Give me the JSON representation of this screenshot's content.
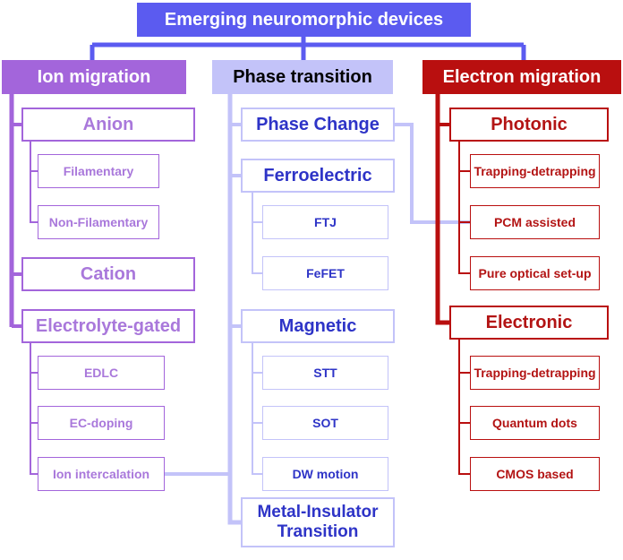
{
  "colors": {
    "root": "#5B5BF0",
    "ion": "#A365DB",
    "ion_text": "#A978DB",
    "phase": "#C3C3F9",
    "phase_text": "#2E34C7",
    "electron": "#B90F0F",
    "electron_text": "#B31414"
  },
  "root": {
    "label": "Emerging neuromorphic devices"
  },
  "ion_migration": {
    "label": "Ion migration",
    "anion": {
      "label": "Anion",
      "children": [
        "Filamentary",
        "Non-Filamentary"
      ]
    },
    "cation": {
      "label": "Cation"
    },
    "electrolyte": {
      "label": "Electrolyte-gated",
      "children": [
        "EDLC",
        "EC-doping",
        "Ion intercalation"
      ]
    }
  },
  "phase_transition": {
    "label": "Phase transition",
    "phase_change": {
      "label": "Phase Change"
    },
    "ferroelectric": {
      "label": "Ferroelectric",
      "children": [
        "FTJ",
        "FeFET"
      ]
    },
    "magnetic": {
      "label": "Magnetic",
      "children": [
        "STT",
        "SOT",
        "DW motion"
      ]
    },
    "mit": {
      "label": "Metal-Insulator Transition"
    }
  },
  "electron_migration": {
    "label": "Electron migration",
    "photonic": {
      "label": "Photonic",
      "children": [
        "Trapping-detrapping",
        "PCM assisted",
        "Pure optical set-up"
      ]
    },
    "electronic": {
      "label": "Electronic",
      "children": [
        "Trapping-detrapping",
        "Quantum dots",
        "CMOS based"
      ]
    }
  }
}
